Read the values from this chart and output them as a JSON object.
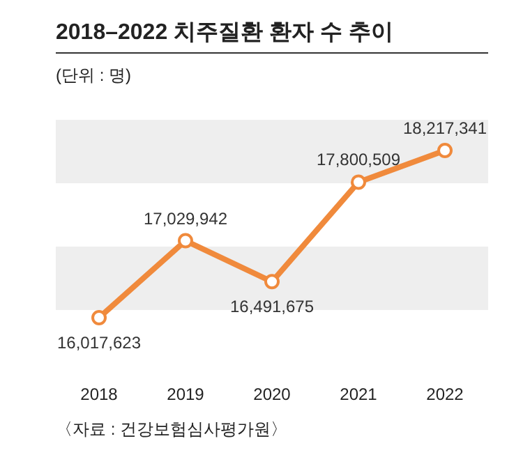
{
  "chart_data": {
    "type": "line",
    "title": "2018–2022 치주질환 환자 수 추이",
    "subtitle": "(단위 : 명)",
    "categories": [
      "2018",
      "2019",
      "2020",
      "2021",
      "2022"
    ],
    "series": [
      {
        "color": "#f08a3c",
        "values": [
          16017623,
          17029942,
          16491675,
          17800509,
          18217341
        ],
        "value_labels": [
          "16,017,623",
          "17,029,942",
          "16,491,675",
          "17,800,509",
          "18,217,341"
        ]
      }
    ],
    "marker": "circle",
    "annotations": [
      "〈자료 : 건강보험심사평가원〉"
    ]
  }
}
